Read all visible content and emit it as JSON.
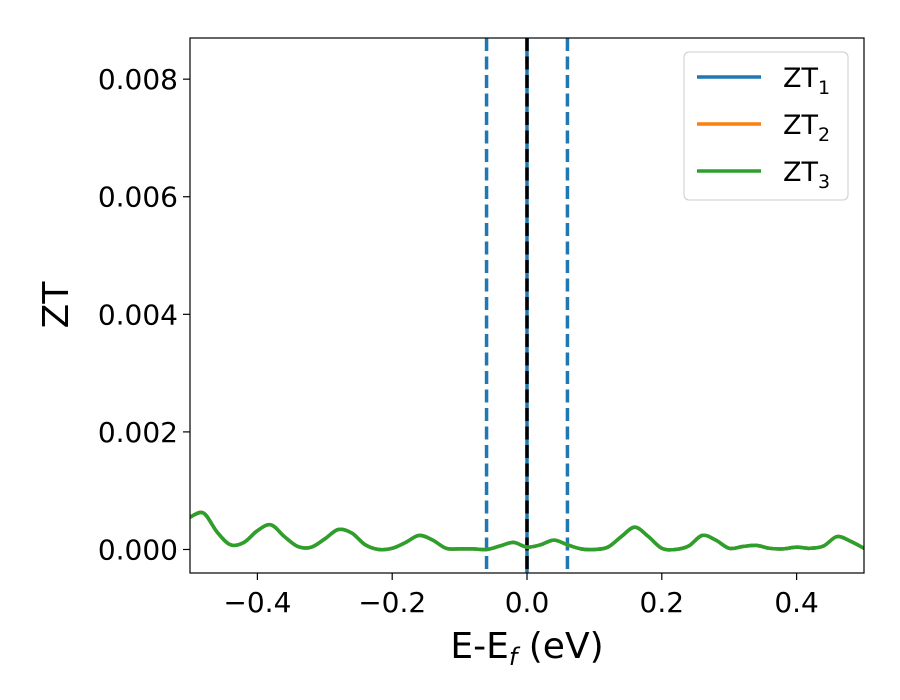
{
  "chart_data": {
    "type": "line",
    "title": "",
    "xlabel": "E-E",
    "xlabel_sub": "f",
    "xlabel_unit": " (eV)",
    "ylabel": "ZT",
    "xlim": [
      -0.5,
      0.5
    ],
    "ylim": [
      -0.0004,
      0.0087
    ],
    "xticks": [
      -0.4,
      -0.2,
      0.0,
      0.2,
      0.4
    ],
    "xtick_labels": [
      "−0.4",
      "−0.2",
      "0.0",
      "0.2",
      "0.4"
    ],
    "yticks": [
      0.0,
      0.002,
      0.004,
      0.006,
      0.008
    ],
    "ytick_labels": [
      "0.000",
      "0.002",
      "0.004",
      "0.006",
      "0.008"
    ],
    "grid": false,
    "legend_position": "top-right",
    "vlines": [
      {
        "x": -0.06,
        "style": "dashed",
        "color": "#1f77b4"
      },
      {
        "x": 0.0,
        "style": "solid",
        "color": "#1f77b4"
      },
      {
        "x": 0.0,
        "style": "dashed",
        "color": "#000000"
      },
      {
        "x": 0.06,
        "style": "dashed",
        "color": "#1f77b4"
      }
    ],
    "series": [
      {
        "name": "ZT",
        "sub": "1",
        "color": "#1f77b4",
        "x": [
          -0.5,
          -0.48,
          -0.46,
          -0.44,
          -0.42,
          -0.4,
          -0.38,
          -0.36,
          -0.34,
          -0.32,
          -0.3,
          -0.28,
          -0.26,
          -0.24,
          -0.22,
          -0.2,
          -0.18,
          -0.16,
          -0.14,
          -0.12,
          -0.1,
          -0.08,
          -0.06,
          -0.04,
          -0.02,
          0.0,
          0.02,
          0.04,
          0.06,
          0.08,
          0.1,
          0.12,
          0.14,
          0.16,
          0.18,
          0.2,
          0.22,
          0.24,
          0.26,
          0.28,
          0.3,
          0.32,
          0.34,
          0.36,
          0.38,
          0.4,
          0.42,
          0.44,
          0.46,
          0.48,
          0.5
        ],
        "y": [
          0.00055,
          0.00062,
          0.0003,
          8e-05,
          0.00012,
          0.00032,
          0.00042,
          0.00022,
          5e-05,
          4e-05,
          0.00018,
          0.00034,
          0.00028,
          8e-05,
          0.0,
          2e-05,
          0.00012,
          0.00024,
          0.00016,
          2e-05,
          1e-05,
          1e-05,
          0.0,
          6e-05,
          0.00012,
          4e-05,
          8e-05,
          0.00016,
          8e-05,
          1e-05,
          0.0,
          4e-05,
          0.00022,
          0.00038,
          0.00022,
          2e-05,
          0.0,
          6e-05,
          0.00024,
          0.00016,
          2e-05,
          5e-05,
          7e-05,
          2e-05,
          1e-05,
          4e-05,
          2e-05,
          6e-05,
          0.00022,
          0.00014,
          2e-05
        ]
      },
      {
        "name": "ZT",
        "sub": "2",
        "color": "#ff7f0e",
        "x": [
          -0.5,
          -0.48,
          -0.46,
          -0.44,
          -0.42,
          -0.4,
          -0.38,
          -0.36,
          -0.34,
          -0.32,
          -0.3,
          -0.28,
          -0.26,
          -0.24,
          -0.22,
          -0.2,
          -0.18,
          -0.16,
          -0.14,
          -0.12,
          -0.1,
          -0.08,
          -0.06,
          -0.04,
          -0.02,
          0.0,
          0.02,
          0.04,
          0.06,
          0.08,
          0.1,
          0.12,
          0.14,
          0.16,
          0.18,
          0.2,
          0.22,
          0.24,
          0.26,
          0.28,
          0.3,
          0.32,
          0.34,
          0.36,
          0.38,
          0.4,
          0.42,
          0.44,
          0.46,
          0.48,
          0.5
        ],
        "y": [
          0.00055,
          0.00062,
          0.0003,
          8e-05,
          0.00012,
          0.00032,
          0.00042,
          0.00022,
          5e-05,
          4e-05,
          0.00018,
          0.00034,
          0.00028,
          8e-05,
          0.0,
          2e-05,
          0.00012,
          0.00024,
          0.00016,
          2e-05,
          1e-05,
          1e-05,
          0.0,
          6e-05,
          0.00012,
          4e-05,
          8e-05,
          0.00016,
          8e-05,
          1e-05,
          0.0,
          4e-05,
          0.00022,
          0.00038,
          0.00022,
          2e-05,
          0.0,
          6e-05,
          0.00024,
          0.00016,
          2e-05,
          5e-05,
          7e-05,
          2e-05,
          1e-05,
          4e-05,
          2e-05,
          6e-05,
          0.00022,
          0.00014,
          2e-05
        ]
      },
      {
        "name": "ZT",
        "sub": "3",
        "color": "#2ca02c",
        "x": [
          -0.5,
          -0.48,
          -0.46,
          -0.44,
          -0.42,
          -0.4,
          -0.38,
          -0.36,
          -0.34,
          -0.32,
          -0.3,
          -0.28,
          -0.26,
          -0.24,
          -0.22,
          -0.2,
          -0.18,
          -0.16,
          -0.14,
          -0.12,
          -0.1,
          -0.08,
          -0.06,
          -0.04,
          -0.02,
          0.0,
          0.02,
          0.04,
          0.06,
          0.08,
          0.1,
          0.12,
          0.14,
          0.16,
          0.18,
          0.2,
          0.22,
          0.24,
          0.26,
          0.28,
          0.3,
          0.32,
          0.34,
          0.36,
          0.38,
          0.4,
          0.42,
          0.44,
          0.46,
          0.48,
          0.5
        ],
        "y": [
          0.00055,
          0.00062,
          0.0003,
          8e-05,
          0.00012,
          0.00032,
          0.00042,
          0.00022,
          5e-05,
          4e-05,
          0.00018,
          0.00034,
          0.00028,
          8e-05,
          0.0,
          2e-05,
          0.00012,
          0.00024,
          0.00016,
          2e-05,
          1e-05,
          1e-05,
          0.0,
          6e-05,
          0.00012,
          4e-05,
          8e-05,
          0.00016,
          8e-05,
          1e-05,
          0.0,
          4e-05,
          0.00022,
          0.00038,
          0.00022,
          2e-05,
          0.0,
          6e-05,
          0.00024,
          0.00016,
          2e-05,
          5e-05,
          7e-05,
          2e-05,
          1e-05,
          4e-05,
          2e-05,
          6e-05,
          0.00022,
          0.00014,
          2e-05
        ]
      }
    ]
  }
}
